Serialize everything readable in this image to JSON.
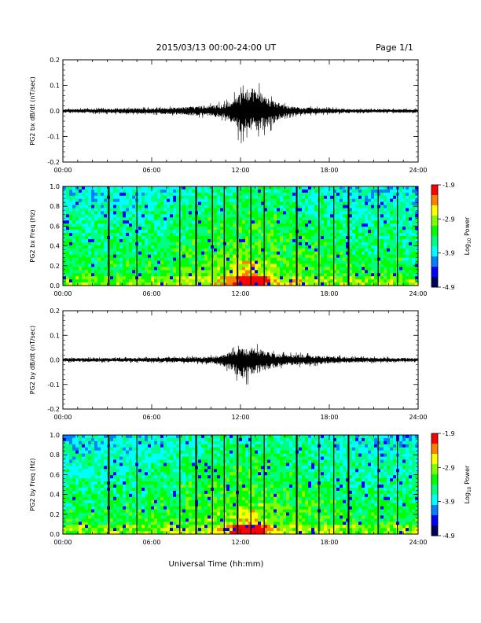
{
  "header": {
    "title": "2015/03/13  00:00-24:00 UT",
    "page": "Page 1/1"
  },
  "xlabel": "Universal Time (hh:mm)",
  "colorbar": {
    "label_prefix": "Log",
    "label_sub": "10",
    "label_suffix": " Power",
    "ticks": [
      "-1.9",
      "-2.9",
      "-3.9",
      "-4.9"
    ],
    "colors": [
      "#ff0000",
      "#ff8000",
      "#ffff00",
      "#80ff00",
      "#00ff00",
      "#00ff80",
      "#00ffff",
      "#0080ff",
      "#0000ff",
      "#000060"
    ]
  },
  "chart_data": [
    {
      "type": "line",
      "ylabel": "PG2 bx dB/dt (nT/sec)",
      "x_ticks": [
        "00:00",
        "06:00",
        "12:00",
        "18:00",
        "24:00"
      ],
      "x_range_hours": [
        0,
        24
      ],
      "y_ticks": [
        "0.2",
        "0.1",
        "0.0",
        "-0.1",
        "-0.2"
      ],
      "ylim": [
        -0.2,
        0.2
      ],
      "envelope": {
        "x_hours": [
          0,
          6,
          8,
          10,
          11,
          11.5,
          12,
          12.5,
          13,
          13.5,
          14,
          15,
          16,
          18,
          20,
          24
        ],
        "ymax": [
          0.01,
          0.015,
          0.02,
          0.03,
          0.04,
          0.07,
          0.09,
          0.12,
          0.13,
          0.09,
          0.06,
          0.03,
          0.02,
          0.015,
          0.01,
          0.01
        ],
        "ymin": [
          -0.01,
          -0.015,
          -0.02,
          -0.03,
          -0.04,
          -0.08,
          -0.13,
          -0.1,
          -0.1,
          -0.1,
          -0.08,
          -0.03,
          -0.02,
          -0.015,
          -0.01,
          -0.01
        ]
      }
    },
    {
      "type": "heatmap",
      "ylabel": "PG2 bx Freq (Hz)",
      "x_ticks": [
        "00:00",
        "06:00",
        "12:00",
        "18:00",
        "24:00"
      ],
      "x_range_hours": [
        0,
        24
      ],
      "y_ticks": [
        "1.0",
        "0.8",
        "0.6",
        "0.4",
        "0.2",
        "0.0"
      ],
      "ylim": [
        0.0,
        1.0
      ],
      "color_range_log10_power": [
        -4.9,
        -1.9
      ],
      "gap_lines_hours": [
        3.1,
        5.0,
        7.9,
        9.0,
        10.1,
        10.9,
        11.8,
        12.7,
        13.6,
        15.8,
        17.3,
        18.3,
        19.3,
        21.3,
        22.6
      ]
    },
    {
      "type": "line",
      "ylabel": "PG2 by dB/dt (nT/sec)",
      "x_ticks": [
        "00:00",
        "06:00",
        "12:00",
        "18:00",
        "24:00"
      ],
      "x_range_hours": [
        0,
        24
      ],
      "y_ticks": [
        "0.2",
        "0.1",
        "0.0",
        "-0.1",
        "-0.2"
      ],
      "ylim": [
        -0.2,
        0.2
      ],
      "envelope": {
        "x_hours": [
          0,
          6,
          8,
          10,
          11,
          11.5,
          12,
          12.5,
          13,
          13.5,
          14,
          15,
          16,
          18,
          20,
          24
        ],
        "ymax": [
          0.01,
          0.012,
          0.015,
          0.02,
          0.03,
          0.05,
          0.06,
          0.06,
          0.07,
          0.05,
          0.04,
          0.03,
          0.03,
          0.02,
          0.015,
          0.01
        ],
        "ymin": [
          -0.01,
          -0.012,
          -0.015,
          -0.02,
          -0.04,
          -0.07,
          -0.1,
          -0.1,
          -0.09,
          -0.06,
          -0.05,
          -0.03,
          -0.03,
          -0.02,
          -0.015,
          -0.01
        ]
      }
    },
    {
      "type": "heatmap",
      "ylabel": "PG2 by Freq (Hz)",
      "x_ticks": [
        "00:00",
        "06:00",
        "12:00",
        "18:00",
        "24:00"
      ],
      "x_range_hours": [
        0,
        24
      ],
      "y_ticks": [
        "1.0",
        "0.8",
        "0.6",
        "0.4",
        "0.2",
        "0.0"
      ],
      "ylim": [
        0.0,
        1.0
      ],
      "color_range_log10_power": [
        -4.9,
        -1.9
      ],
      "gap_lines_hours": [
        3.1,
        5.0,
        7.9,
        9.0,
        10.1,
        10.9,
        11.8,
        12.7,
        13.6,
        15.8,
        17.3,
        18.3,
        19.3,
        21.3,
        22.6
      ]
    }
  ]
}
